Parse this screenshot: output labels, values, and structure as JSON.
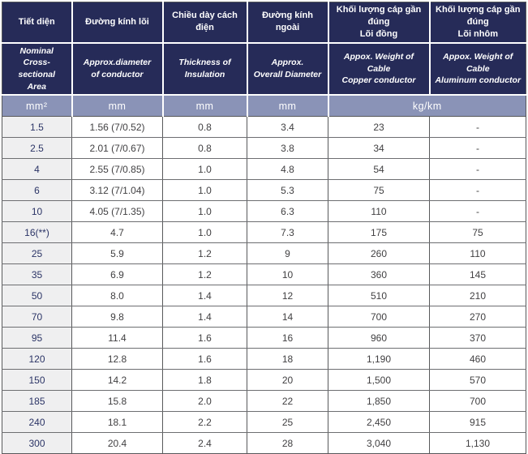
{
  "table": {
    "title": "cable-specification-table",
    "columns": [
      {
        "vi": "Tiết diện",
        "en": "Nominal\nCross- sectional\nArea",
        "unit": "mm²"
      },
      {
        "vi": "Đường kính lõi",
        "en": "Approx.diameter\nof conductor",
        "unit": "mm"
      },
      {
        "vi": "Chiều dày cách điện",
        "en": "Thickness of\nInsulation",
        "unit": "mm"
      },
      {
        "vi": "Đường kính ngoài",
        "en": "Approx.\nOverall Diameter",
        "unit": "mm"
      },
      {
        "vi": "Khối lượng cáp gần đúng\nLõi đồng",
        "en": "Appox. Weight of Cable\nCopper conductor",
        "unit": "kg/km"
      },
      {
        "vi": "Khối lượng cáp gần đúng\nLõi nhôm",
        "en": "Appox. Weight of Cable\nAluminum conductor",
        "unit": "kg/km"
      }
    ],
    "unit_span_label": "kg/km",
    "rows": [
      [
        "1.5",
        "1.56 (7/0.52)",
        "0.8",
        "3.4",
        "23",
        "-"
      ],
      [
        "2.5",
        "2.01 (7/0.67)",
        "0.8",
        "3.8",
        "34",
        "-"
      ],
      [
        "4",
        "2.55 (7/0.85)",
        "1.0",
        "4.8",
        "54",
        "-"
      ],
      [
        "6",
        "3.12 (7/1.04)",
        "1.0",
        "5.3",
        "75",
        "-"
      ],
      [
        "10",
        "4.05 (7/1.35)",
        "1.0",
        "6.3",
        "110",
        "-"
      ],
      [
        "16(**)",
        "4.7",
        "1.0",
        "7.3",
        "175",
        "75"
      ],
      [
        "25",
        "5.9",
        "1.2",
        "9",
        "260",
        "110"
      ],
      [
        "35",
        "6.9",
        "1.2",
        "10",
        "360",
        "145"
      ],
      [
        "50",
        "8.0",
        "1.4",
        "12",
        "510",
        "210"
      ],
      [
        "70",
        "9.8",
        "1.4",
        "14",
        "700",
        "270"
      ],
      [
        "95",
        "11.4",
        "1.6",
        "16",
        "960",
        "370"
      ],
      [
        "120",
        "12.8",
        "1.6",
        "18",
        "1,190",
        "460"
      ],
      [
        "150",
        "14.2",
        "1.8",
        "20",
        "1,500",
        "570"
      ],
      [
        "185",
        "15.8",
        "2.0",
        "22",
        "1,850",
        "700"
      ],
      [
        "240",
        "18.1",
        "2.2",
        "25",
        "2,450",
        "915"
      ],
      [
        "300",
        "20.4",
        "2.4",
        "28",
        "3,040",
        "1,130"
      ]
    ],
    "colors": {
      "header_bg": "#262b58",
      "units_bg": "#8a93b7",
      "first_col_bg": "#efeff0",
      "border": "#58595b",
      "first_col_text": "#2b3466",
      "body_text": "#414042"
    }
  }
}
